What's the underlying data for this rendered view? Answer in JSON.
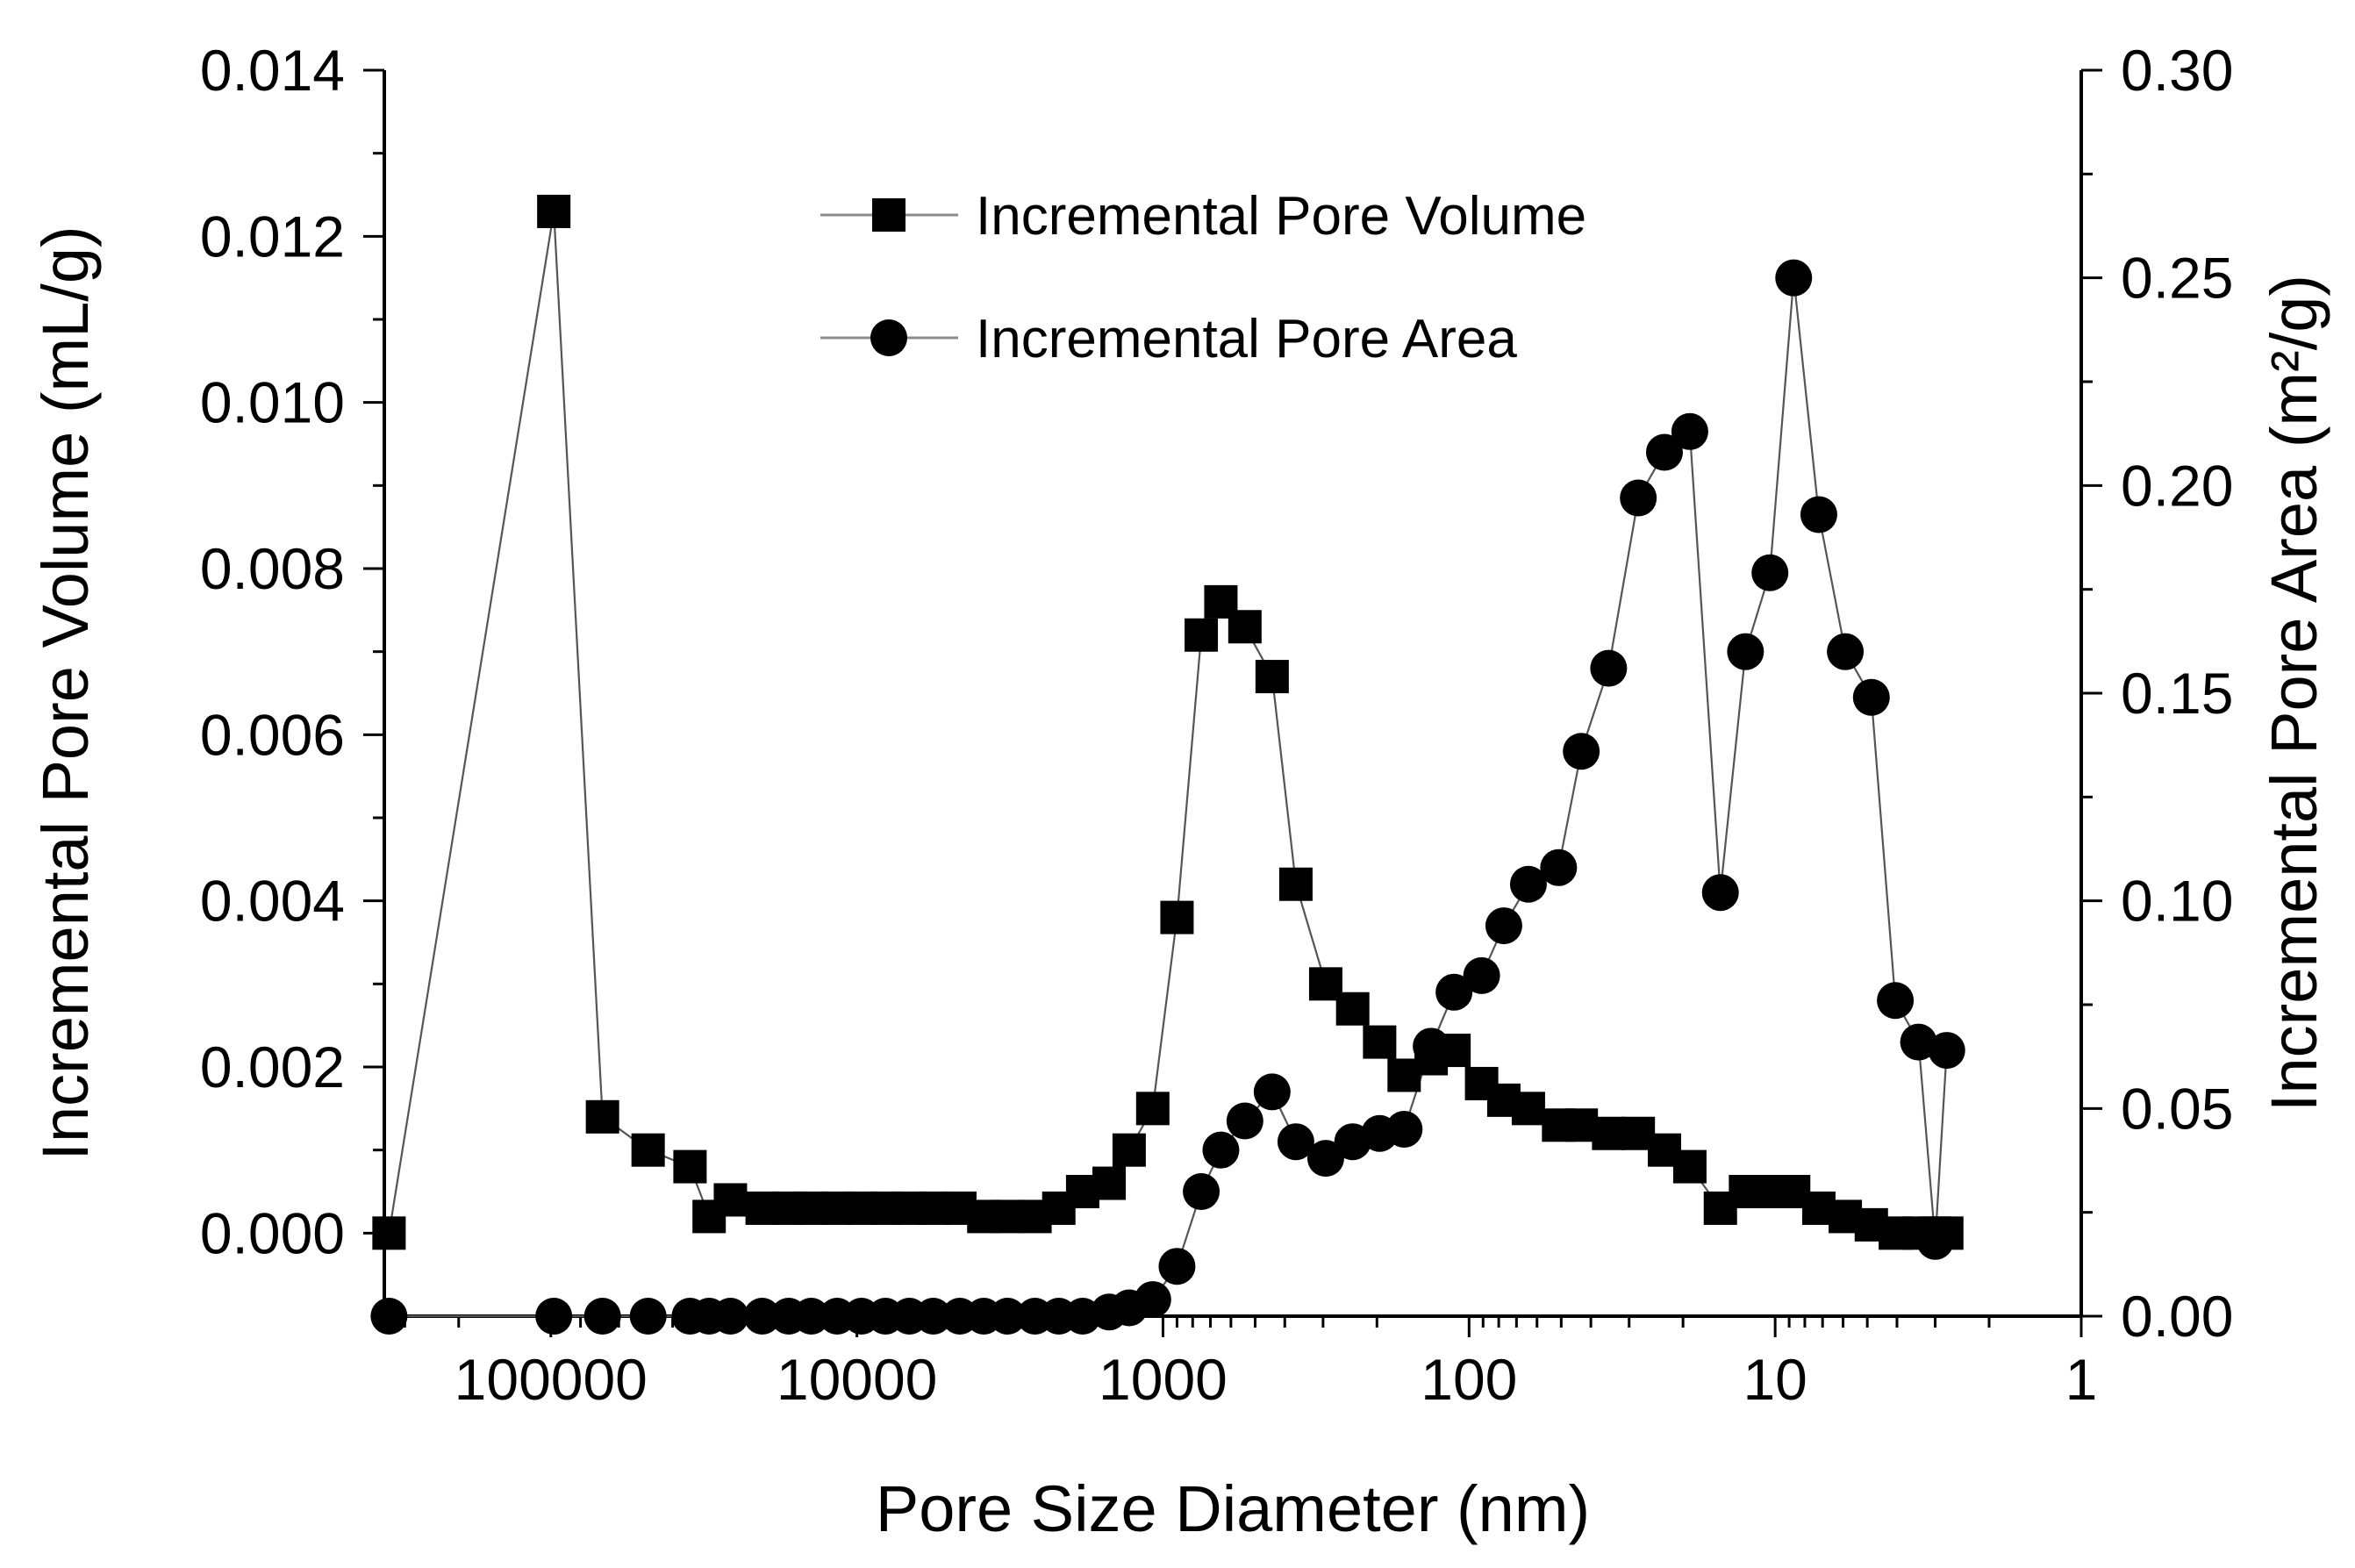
{
  "chart_data": {
    "type": "scatter",
    "title": "",
    "xlabel": "Pore Size Diameter (nm)",
    "ylabel": "Incremental Pore Volume (mL/g)",
    "y2label": "Incremental Pore Area (m²/g)",
    "x_scale": "log",
    "x_reversed": true,
    "xlim": [
      1,
      350000
    ],
    "ylim": [
      -0.001,
      0.014
    ],
    "y2lim": [
      0,
      0.3
    ],
    "x_ticks": [
      100000,
      10000,
      1000,
      100,
      10,
      1
    ],
    "x_tick_labels": [
      "100000",
      "10000",
      "1000",
      "100",
      "10",
      "1"
    ],
    "y_ticks": [
      0.0,
      0.002,
      0.004,
      0.006,
      0.008,
      0.01,
      0.012,
      0.014
    ],
    "y_tick_labels": [
      "0.000",
      "0.002",
      "0.004",
      "0.006",
      "0.008",
      "0.010",
      "0.012",
      "0.014"
    ],
    "y2_ticks": [
      0.0,
      0.05,
      0.1,
      0.15,
      0.2,
      0.25,
      0.3
    ],
    "y2_tick_labels": [
      "0.00",
      "0.05",
      "0.10",
      "0.15",
      "0.20",
      "0.25",
      "0.30"
    ],
    "legend_position": "top-center",
    "series": [
      {
        "name": "Incremental Pore Volume",
        "axis": "left",
        "marker": "square",
        "color": "#000000",
        "x": [
          337800,
          97800,
          67800,
          48100,
          35100,
          30400,
          25900,
          20400,
          16700,
          14100,
          11600,
          9660,
          8070,
          6740,
          5630,
          4610,
          3850,
          3220,
          2620,
          2190,
          1830,
          1500,
          1290,
          1080,
          900,
          750,
          647,
          540,
          440,
          368,
          294,
          240,
          196,
          163,
          133,
          112,
          91,
          77,
          64,
          51,
          43,
          35,
          28,
          23,
          19,
          15.1,
          12.5,
          10.4,
          8.7,
          7.2,
          5.9,
          4.85,
          4.05,
          3.4,
          3.0,
          2.75
        ],
        "y": [
          0.0,
          0.0123,
          0.0014,
          0.001,
          0.0008,
          0.0002,
          0.0004,
          0.0003,
          0.0003,
          0.0003,
          0.0003,
          0.0003,
          0.0003,
          0.0003,
          0.0003,
          0.0003,
          0.0002,
          0.0002,
          0.0002,
          0.0003,
          0.0005,
          0.0006,
          0.001,
          0.0015,
          0.0038,
          0.0072,
          0.0076,
          0.0073,
          0.0067,
          0.0042,
          0.003,
          0.0027,
          0.0023,
          0.0019,
          0.0021,
          0.0022,
          0.0018,
          0.0016,
          0.0015,
          0.0013,
          0.0013,
          0.0012,
          0.0012,
          0.001,
          0.0008,
          0.0003,
          0.0005,
          0.0005,
          0.0005,
          0.0003,
          0.0002,
          0.0001,
          0.0,
          0.0,
          0.0,
          0.0
        ]
      },
      {
        "name": "Incremental Pore Area",
        "axis": "right",
        "marker": "circle",
        "color": "#000000",
        "x": [
          337800,
          97800,
          67800,
          48100,
          35100,
          30400,
          25900,
          20400,
          16700,
          14100,
          11600,
          9660,
          8070,
          6740,
          5630,
          4610,
          3850,
          3220,
          2620,
          2190,
          1830,
          1500,
          1290,
          1080,
          900,
          750,
          647,
          540,
          440,
          368,
          294,
          240,
          196,
          163,
          133,
          112,
          91,
          77,
          64,
          51,
          43,
          35,
          28,
          23,
          19,
          15.1,
          12.5,
          10.4,
          8.7,
          7.2,
          5.9,
          4.85,
          4.05,
          3.4,
          3.0,
          2.75
        ],
        "y": [
          0.0,
          0.0,
          0.0,
          0.0,
          0.0,
          0.0,
          0.0,
          0.0,
          0.0,
          0.0,
          0.0,
          0.0,
          0.0,
          0.0,
          0.0,
          0.0,
          0.0,
          0.0,
          0.0,
          0.0,
          0.0,
          0.001,
          0.002,
          0.004,
          0.012,
          0.03,
          0.04,
          0.047,
          0.054,
          0.042,
          0.038,
          0.042,
          0.044,
          0.045,
          0.065,
          0.078,
          0.082,
          0.094,
          0.104,
          0.108,
          0.136,
          0.156,
          0.197,
          0.208,
          0.213,
          0.102,
          0.16,
          0.179,
          0.25,
          0.193,
          0.16,
          0.149,
          0.076,
          0.066,
          0.018,
          0.064
        ]
      }
    ]
  }
}
